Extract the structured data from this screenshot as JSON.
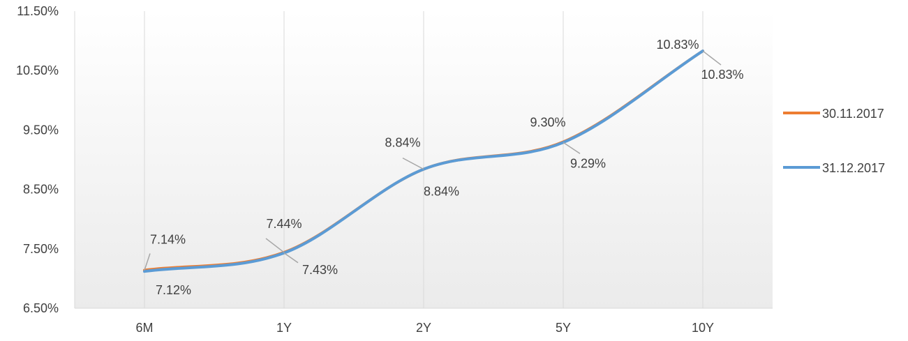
{
  "chart_data": {
    "type": "line",
    "smooth": true,
    "categories": [
      "6M",
      "1Y",
      "2Y",
      "5Y",
      "10Y"
    ],
    "ylim": [
      6.5,
      11.5
    ],
    "yticks": [
      6.5,
      7.5,
      8.5,
      9.5,
      10.5,
      11.5
    ],
    "ytick_labels": [
      "6.50%",
      "7.50%",
      "8.50%",
      "9.50%",
      "10.50%",
      "11.50%"
    ],
    "grid": "vertical lines at categories",
    "legend_position": "right",
    "series": [
      {
        "name": "30.11.2017",
        "color": "#ED7D31",
        "values": [
          7.14,
          7.44,
          8.84,
          9.3,
          10.83
        ],
        "labels": [
          "7.14%",
          "7.44%",
          "8.84%",
          "9.30%",
          "10.83%"
        ]
      },
      {
        "name": "31.12.2017",
        "color": "#5B9BD5",
        "values": [
          7.12,
          7.43,
          8.84,
          9.29,
          10.83
        ],
        "labels": [
          "7.12%",
          "7.43%",
          "8.84%",
          "9.29%",
          "10.83%"
        ]
      }
    ]
  }
}
